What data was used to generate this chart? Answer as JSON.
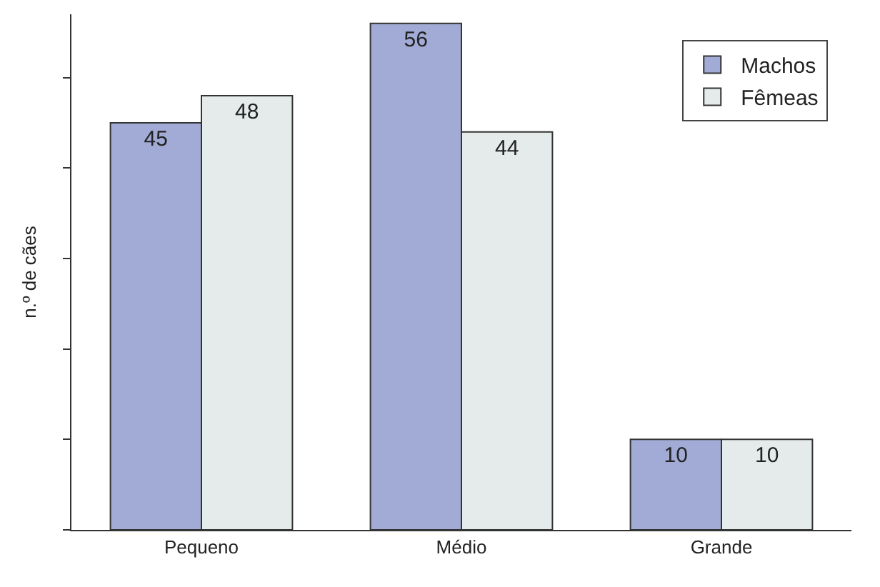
{
  "chart_data": {
    "type": "bar",
    "ylabel": "n.º de cães",
    "categories": [
      "Pequeno",
      "Médio",
      "Grande"
    ],
    "series": [
      {
        "name": "Machos",
        "color": "#a2abd6",
        "values": [
          45,
          56,
          10
        ]
      },
      {
        "name": "Fêmeas",
        "color": "#e4ebea",
        "values": [
          48,
          44,
          10
        ]
      }
    ],
    "ylim": [
      0,
      57
    ],
    "yticks": [
      {
        "value": 0,
        "label": null
      },
      {
        "value": 10,
        "label": null
      },
      {
        "value": 20,
        "label": null
      },
      {
        "value": 30,
        "label": null
      },
      {
        "value": 40,
        "label": null
      },
      {
        "value": 50,
        "label": null
      }
    ],
    "tick_labels": "x",
    "data_labels": true,
    "legend": "top right"
  }
}
